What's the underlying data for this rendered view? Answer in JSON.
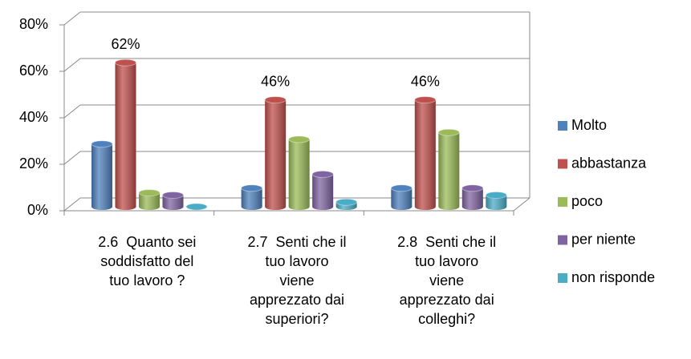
{
  "chart_data": {
    "type": "bar3d",
    "categories": [
      "2.6  Quanto sei\nsoddisfatto del\ntuo lavoro ?",
      "2.7  Senti che il\ntuo lavoro\nviene\napprezzato dai\nsuperiori?",
      "2.8  Senti che il\ntuo lavoro\nviene\napprezzato dai\ncolleghi?"
    ],
    "series": [
      {
        "name": "Molto",
        "color": "#4f81bd",
        "values": [
          27,
          8,
          8
        ]
      },
      {
        "name": "abbastanza",
        "color": "#c0504d",
        "values": [
          62,
          46,
          46
        ],
        "value_labels": [
          "62%",
          "46%",
          "46%"
        ]
      },
      {
        "name": "poco",
        "color": "#9bbb59",
        "values": [
          6,
          29,
          32
        ]
      },
      {
        "name": "per niente",
        "color": "#8064a2",
        "values": [
          5,
          14,
          8
        ]
      },
      {
        "name": "non risponde",
        "color": "#4bacc6",
        "values": [
          0,
          2,
          5
        ]
      }
    ],
    "ylim": [
      0,
      80
    ],
    "yticks": [
      {
        "value": 0,
        "label": "0%"
      },
      {
        "value": 20,
        "label": "20%"
      },
      {
        "value": 40,
        "label": "40%"
      },
      {
        "value": 60,
        "label": "60%"
      },
      {
        "value": 80,
        "label": "80%"
      }
    ],
    "grid": true,
    "legend": "right"
  }
}
